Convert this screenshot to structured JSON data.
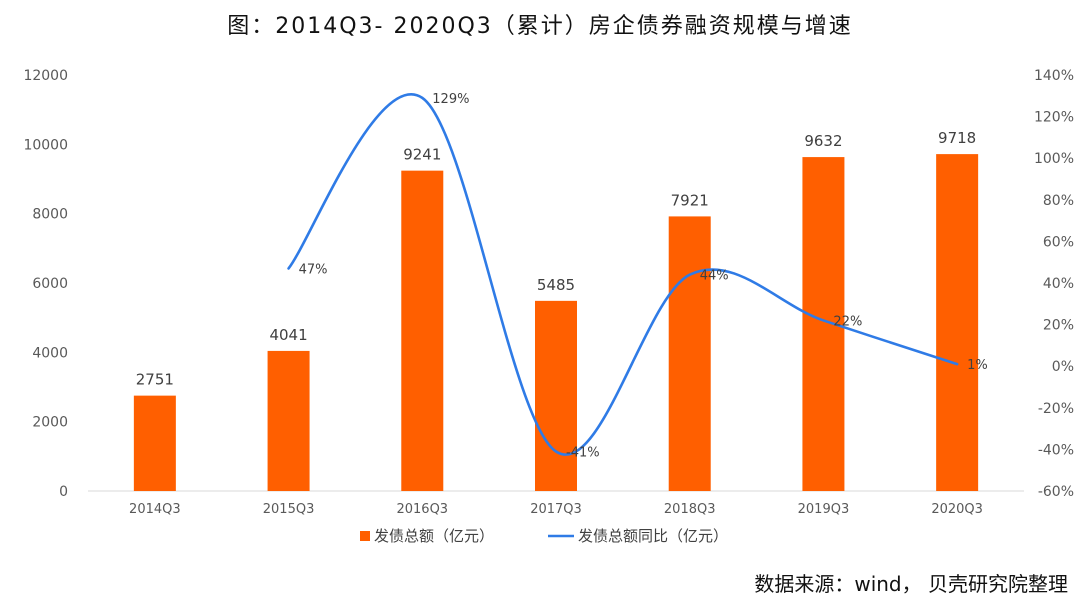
{
  "title": "图：2014Q3- 2020Q3（累计）房企债券融资规模与增速",
  "source": "数据来源：wind， 贝壳研究院整理",
  "colors": {
    "bar": "#ff5f00",
    "line": "#2f7be6",
    "axis": "#d9d9d9",
    "text": "#595959"
  },
  "chart_data": {
    "type": "bar",
    "categories": [
      "2014Q3",
      "2015Q3",
      "2016Q3",
      "2017Q3",
      "2018Q3",
      "2019Q3",
      "2020Q3"
    ],
    "series": [
      {
        "name": "发债总额（亿元）",
        "type": "bar",
        "axis": "left",
        "values": [
          2751,
          4041,
          9241,
          5485,
          7921,
          9632,
          9718
        ]
      },
      {
        "name": "发债总额同比（亿元）",
        "type": "line",
        "axis": "right",
        "smooth": true,
        "values": [
          null,
          47,
          129,
          -41,
          44,
          22,
          1
        ],
        "labels": [
          "",
          "47%",
          "129%",
          "-41%",
          "44%",
          "22%",
          "1%"
        ]
      }
    ],
    "y_left": {
      "min": 0,
      "max": 12000,
      "step": 2000,
      "ticks": [
        "0",
        "2000",
        "4000",
        "6000",
        "8000",
        "10000",
        "12000"
      ]
    },
    "y_right": {
      "min": -60,
      "max": 140,
      "step": 20,
      "ticks": [
        "-60%",
        "-40%",
        "-20%",
        "0%",
        "20%",
        "40%",
        "60%",
        "80%",
        "100%",
        "120%",
        "140%"
      ]
    },
    "legend_position": "bottom",
    "grid": false
  }
}
